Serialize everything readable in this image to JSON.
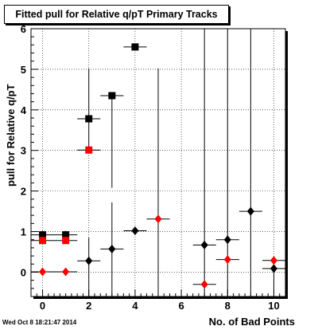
{
  "chart_data": {
    "type": "scatter",
    "title": "Fitted pull for Relative q/pT Primary Tracks",
    "xlabel": "No. of Bad Points",
    "ylabel": "pull for Relative q/pT",
    "xlim": [
      -0.5,
      10.5
    ],
    "ylim": [
      -0.6,
      6.0
    ],
    "xticks": [
      "0",
      "2",
      "4",
      "6",
      "8",
      "10"
    ],
    "yticks": [
      "0",
      "1",
      "2",
      "3",
      "4",
      "5",
      "6"
    ],
    "grid": true,
    "series": [
      {
        "marker": "square",
        "color": "#000000",
        "points": [
          {
            "x": 0,
            "y": 0.92,
            "ylo": 0.75,
            "yhi": 1.02
          },
          {
            "x": 1,
            "y": 0.92,
            "ylo": 0.8,
            "yhi": 1.02
          },
          {
            "x": 2,
            "y": 3.78,
            "ylo": 2.98,
            "yhi": 5.02
          },
          {
            "x": 3,
            "y": 4.35,
            "ylo": 2.08,
            "yhi": 4.35
          },
          {
            "x": 4,
            "y": 5.55,
            "ylo": 5.55,
            "yhi": 5.55
          }
        ]
      },
      {
        "marker": "square",
        "color": "#ff0000",
        "points": [
          {
            "x": 0,
            "y": 0.78,
            "ylo": 0.78,
            "yhi": 0.78
          },
          {
            "x": 1,
            "y": 0.78,
            "ylo": 0.78,
            "yhi": 0.78
          },
          {
            "x": 2,
            "y": 3.01,
            "ylo": 3.01,
            "yhi": 3.01
          }
        ]
      },
      {
        "marker": "diamond",
        "color": "#000000",
        "points": [
          {
            "x": 2,
            "y": 0.28,
            "ylo": -0.6,
            "yhi": 0.85
          },
          {
            "x": 3,
            "y": 0.57,
            "ylo": -0.6,
            "yhi": 1.72
          },
          {
            "x": 4,
            "y": 1.02,
            "ylo": 1.02,
            "yhi": 1.02
          },
          {
            "x": 7,
            "y": 0.67,
            "ylo": -0.6,
            "yhi": 6.0
          },
          {
            "x": 8,
            "y": 0.8,
            "ylo": -0.6,
            "yhi": 6.0
          },
          {
            "x": 9,
            "y": 1.5,
            "ylo": -0.6,
            "yhi": 6.0
          },
          {
            "x": 10,
            "y": 0.09,
            "ylo": -0.6,
            "yhi": 0.3
          }
        ]
      },
      {
        "marker": "diamond",
        "color": "#ff0000",
        "points": [
          {
            "x": 0,
            "y": 0.01,
            "ylo": 0.01,
            "yhi": 0.01
          },
          {
            "x": 1,
            "y": 0.01,
            "ylo": 0.01,
            "yhi": 0.01
          },
          {
            "x": 5,
            "y": 1.31,
            "ylo": -0.6,
            "yhi": 5.02
          },
          {
            "x": 7,
            "y": -0.3,
            "ylo": -0.3,
            "yhi": -0.3
          },
          {
            "x": 8,
            "y": 0.31,
            "ylo": 0.31,
            "yhi": 0.31
          },
          {
            "x": 10,
            "y": 0.29,
            "ylo": 0.29,
            "yhi": 0.29
          }
        ]
      }
    ]
  },
  "footer": {
    "timestamp": "Wed Oct  8 18:21:47 2014"
  }
}
